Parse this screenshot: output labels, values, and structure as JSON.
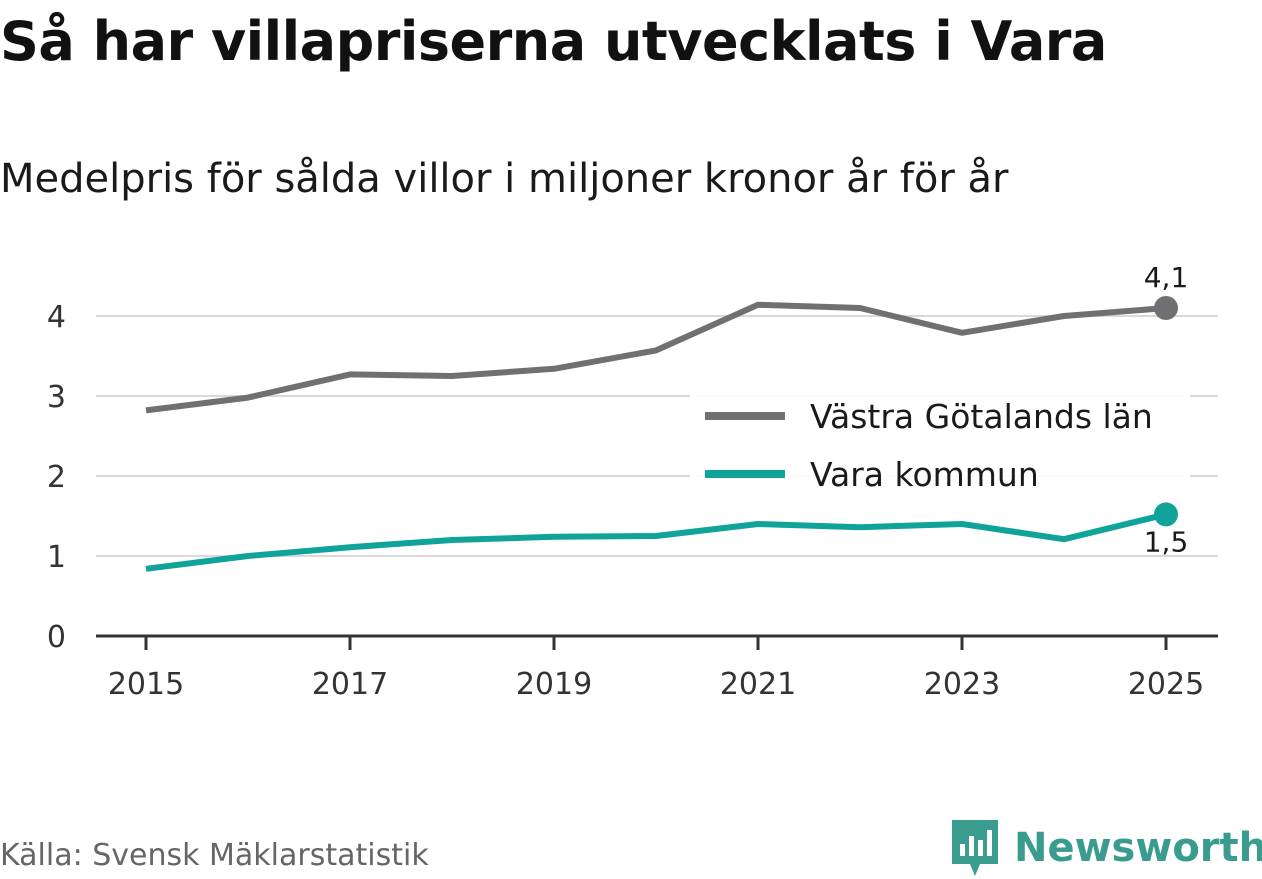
{
  "title": "Så har villapriserna utvecklats i Vara",
  "subtitle": "Medelpris för sålda villor i miljoner kronor år för år",
  "source": "Källa: Svensk Mäklarstatistik",
  "brand": {
    "name": "Newsworthy",
    "icon": "newsworthy-logo-icon",
    "color": "#3a9b8f"
  },
  "chart_data": {
    "type": "line",
    "title": "Så har villapriserna utvecklats i Vara",
    "subtitle": "Medelpris för sålda villor i miljoner kronor år för år",
    "xlabel": "",
    "ylabel": "",
    "x": [
      2015,
      2016,
      2017,
      2018,
      2019,
      2020,
      2021,
      2022,
      2023,
      2024,
      2025
    ],
    "x_ticks": [
      "2015",
      "2017",
      "2019",
      "2021",
      "2023",
      "2025"
    ],
    "y_ticks": [
      "0",
      "1",
      "2",
      "3",
      "4"
    ],
    "ylim": [
      0,
      4.5
    ],
    "grid": true,
    "legend_position": "right",
    "series": [
      {
        "name": "Västra Götalands län",
        "color": "#707073",
        "values": [
          2.82,
          2.98,
          3.27,
          3.25,
          3.34,
          3.57,
          4.14,
          4.1,
          3.79,
          4.0,
          4.1
        ],
        "end_label": "4,1"
      },
      {
        "name": "Vara kommun",
        "color": "#0fa39a",
        "values": [
          0.84,
          1.0,
          1.11,
          1.2,
          1.24,
          1.25,
          1.4,
          1.36,
          1.4,
          1.21,
          1.52
        ],
        "end_label": "1,5"
      }
    ]
  }
}
